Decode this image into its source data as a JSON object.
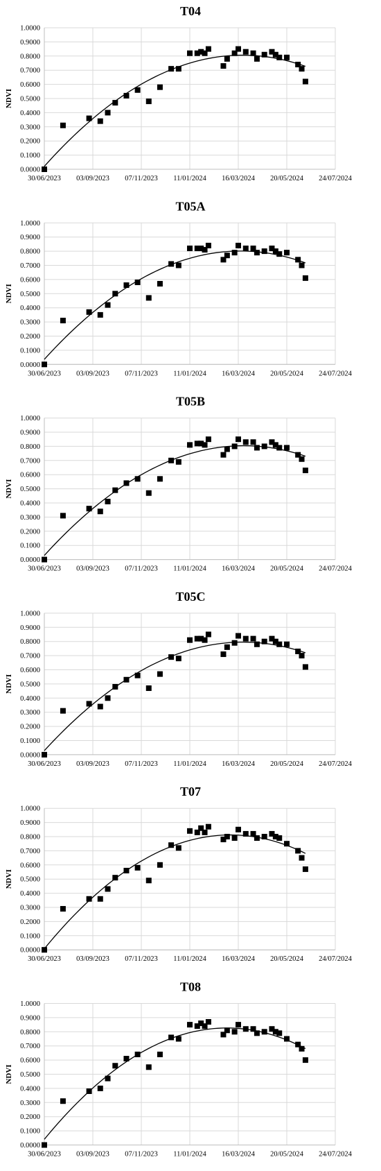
{
  "chart_data": [
    {
      "type": "scatter",
      "title": "T04",
      "ylabel": "NDVI",
      "xlabel": "",
      "x_ticks": [
        "30/06/2023",
        "03/09/2023",
        "07/11/2023",
        "11/01/2024",
        "16/03/2024",
        "20/05/2024",
        "24/07/2024"
      ],
      "y_ticks": [
        "0.0000",
        "0.1000",
        "0.2000",
        "0.3000",
        "0.4000",
        "0.5000",
        "0.6000",
        "0.7000",
        "0.8000",
        "0.9000",
        "1.0000"
      ],
      "xlim": [
        "2023-06-30",
        "2024-07-24"
      ],
      "ylim": [
        0,
        1
      ],
      "grid": true,
      "legend": false,
      "trendline": "polynomial",
      "series": [
        {
          "x": [
            "2023-06-30",
            "2023-07-25",
            "2023-08-29",
            "2023-09-13",
            "2023-09-23",
            "2023-10-03",
            "2023-10-18",
            "2023-11-02",
            "2023-11-17",
            "2023-12-02",
            "2023-12-17",
            "2023-12-27",
            "2024-01-11",
            "2024-01-21",
            "2024-01-26",
            "2024-01-31",
            "2024-02-05",
            "2024-02-25",
            "2024-03-01",
            "2024-03-11",
            "2024-03-16",
            "2024-03-26",
            "2024-04-05",
            "2024-04-10",
            "2024-04-20",
            "2024-04-30",
            "2024-05-05",
            "2024-05-10",
            "2024-05-20",
            "2024-06-04",
            "2024-06-09",
            "2024-06-14"
          ],
          "y": [
            0.0,
            0.31,
            0.36,
            0.34,
            0.4,
            0.47,
            0.52,
            0.56,
            0.48,
            0.58,
            0.71,
            0.71,
            0.82,
            0.82,
            0.83,
            0.82,
            0.85,
            0.73,
            0.78,
            0.82,
            0.85,
            0.83,
            0.82,
            0.78,
            0.81,
            0.83,
            0.81,
            0.79,
            0.79,
            0.74,
            0.71,
            0.62
          ]
        }
      ]
    },
    {
      "type": "scatter",
      "title": "T05A",
      "ylabel": "NDVI",
      "xlabel": "",
      "x_ticks": [
        "30/06/2023",
        "03/09/2023",
        "07/11/2023",
        "11/01/2024",
        "16/03/2024",
        "20/05/2024",
        "24/07/2024"
      ],
      "y_ticks": [
        "0.0000",
        "0.1000",
        "0.2000",
        "0.3000",
        "0.4000",
        "0.5000",
        "0.6000",
        "0.7000",
        "0.8000",
        "0.9000",
        "1.0000"
      ],
      "xlim": [
        "2023-06-30",
        "2024-07-24"
      ],
      "ylim": [
        0,
        1
      ],
      "grid": true,
      "legend": false,
      "trendline": "polynomial",
      "series": [
        {
          "x": [
            "2023-06-30",
            "2023-07-25",
            "2023-08-29",
            "2023-09-13",
            "2023-09-23",
            "2023-10-03",
            "2023-10-18",
            "2023-11-02",
            "2023-11-17",
            "2023-12-02",
            "2023-12-17",
            "2023-12-27",
            "2024-01-11",
            "2024-01-21",
            "2024-01-26",
            "2024-01-31",
            "2024-02-05",
            "2024-02-25",
            "2024-03-01",
            "2024-03-11",
            "2024-03-16",
            "2024-03-26",
            "2024-04-05",
            "2024-04-10",
            "2024-04-20",
            "2024-04-30",
            "2024-05-05",
            "2024-05-10",
            "2024-05-20",
            "2024-06-04",
            "2024-06-09",
            "2024-06-14"
          ],
          "y": [
            0.0,
            0.31,
            0.37,
            0.35,
            0.42,
            0.5,
            0.56,
            0.58,
            0.47,
            0.57,
            0.71,
            0.7,
            0.82,
            0.82,
            0.82,
            0.81,
            0.84,
            0.74,
            0.77,
            0.79,
            0.84,
            0.82,
            0.82,
            0.79,
            0.8,
            0.82,
            0.8,
            0.78,
            0.79,
            0.74,
            0.7,
            0.61
          ]
        }
      ]
    },
    {
      "type": "scatter",
      "title": "T05B",
      "ylabel": "NDVI",
      "xlabel": "",
      "x_ticks": [
        "30/06/2023",
        "03/09/2023",
        "07/11/2023",
        "11/01/2024",
        "16/03/2024",
        "20/05/2024",
        "24/07/2024"
      ],
      "y_ticks": [
        "0.0000",
        "0.1000",
        "0.2000",
        "0.3000",
        "0.4000",
        "0.5000",
        "0.6000",
        "0.7000",
        "0.8000",
        "0.9000",
        "1.0000"
      ],
      "xlim": [
        "2023-06-30",
        "2024-07-24"
      ],
      "ylim": [
        0,
        1
      ],
      "grid": true,
      "legend": false,
      "trendline": "polynomial",
      "series": [
        {
          "x": [
            "2023-06-30",
            "2023-07-25",
            "2023-08-29",
            "2023-09-13",
            "2023-09-23",
            "2023-10-03",
            "2023-10-18",
            "2023-11-02",
            "2023-11-17",
            "2023-12-02",
            "2023-12-17",
            "2023-12-27",
            "2024-01-11",
            "2024-01-21",
            "2024-01-26",
            "2024-01-31",
            "2024-02-05",
            "2024-02-25",
            "2024-03-01",
            "2024-03-11",
            "2024-03-16",
            "2024-03-26",
            "2024-04-05",
            "2024-04-10",
            "2024-04-20",
            "2024-04-30",
            "2024-05-05",
            "2024-05-10",
            "2024-05-20",
            "2024-06-04",
            "2024-06-09",
            "2024-06-14"
          ],
          "y": [
            0.0,
            0.31,
            0.36,
            0.34,
            0.41,
            0.49,
            0.54,
            0.57,
            0.47,
            0.57,
            0.7,
            0.69,
            0.81,
            0.82,
            0.82,
            0.81,
            0.85,
            0.74,
            0.78,
            0.8,
            0.85,
            0.83,
            0.83,
            0.79,
            0.8,
            0.83,
            0.81,
            0.79,
            0.79,
            0.74,
            0.71,
            0.63
          ]
        }
      ]
    },
    {
      "type": "scatter",
      "title": "T05C",
      "ylabel": "NDVI",
      "xlabel": "",
      "x_ticks": [
        "30/06/2023",
        "03/09/2023",
        "07/11/2023",
        "11/01/2024",
        "16/03/2024",
        "20/05/2024",
        "24/07/2024"
      ],
      "y_ticks": [
        "0.0000",
        "0.1000",
        "0.2000",
        "0.3000",
        "0.4000",
        "0.5000",
        "0.6000",
        "0.7000",
        "0.8000",
        "0.9000",
        "1.0000"
      ],
      "xlim": [
        "2023-06-30",
        "2024-07-24"
      ],
      "ylim": [
        0,
        1
      ],
      "grid": true,
      "legend": false,
      "trendline": "polynomial",
      "series": [
        {
          "x": [
            "2023-06-30",
            "2023-07-25",
            "2023-08-29",
            "2023-09-13",
            "2023-09-23",
            "2023-10-03",
            "2023-10-18",
            "2023-11-02",
            "2023-11-17",
            "2023-12-02",
            "2023-12-17",
            "2023-12-27",
            "2024-01-11",
            "2024-01-21",
            "2024-01-26",
            "2024-01-31",
            "2024-02-05",
            "2024-02-25",
            "2024-03-01",
            "2024-03-11",
            "2024-03-16",
            "2024-03-26",
            "2024-04-05",
            "2024-04-10",
            "2024-04-20",
            "2024-04-30",
            "2024-05-05",
            "2024-05-10",
            "2024-05-20",
            "2024-06-04",
            "2024-06-09",
            "2024-06-14"
          ],
          "y": [
            0.0,
            0.31,
            0.36,
            0.34,
            0.4,
            0.48,
            0.53,
            0.56,
            0.47,
            0.57,
            0.69,
            0.68,
            0.81,
            0.82,
            0.82,
            0.81,
            0.85,
            0.71,
            0.76,
            0.79,
            0.84,
            0.82,
            0.82,
            0.78,
            0.8,
            0.82,
            0.8,
            0.78,
            0.78,
            0.73,
            0.7,
            0.62
          ]
        }
      ]
    },
    {
      "type": "scatter",
      "title": "T07",
      "ylabel": "NDVI",
      "xlabel": "",
      "x_ticks": [
        "30/06/2023",
        "03/09/2023",
        "07/11/2023",
        "11/01/2024",
        "16/03/2024",
        "20/05/2024",
        "24/07/2024"
      ],
      "y_ticks": [
        "0.0000",
        "0.1000",
        "0.2000",
        "0.3000",
        "0.4000",
        "0.5000",
        "0.6000",
        "0.7000",
        "0.8000",
        "0.9000",
        "1.0000"
      ],
      "xlim": [
        "2023-06-30",
        "2024-07-24"
      ],
      "ylim": [
        0,
        1
      ],
      "grid": true,
      "legend": false,
      "trendline": "polynomial",
      "series": [
        {
          "x": [
            "2023-06-30",
            "2023-07-25",
            "2023-08-29",
            "2023-09-13",
            "2023-09-23",
            "2023-10-03",
            "2023-10-18",
            "2023-11-02",
            "2023-11-17",
            "2023-12-02",
            "2023-12-17",
            "2023-12-27",
            "2024-01-11",
            "2024-01-21",
            "2024-01-26",
            "2024-01-31",
            "2024-02-05",
            "2024-02-25",
            "2024-03-01",
            "2024-03-11",
            "2024-03-16",
            "2024-03-26",
            "2024-04-05",
            "2024-04-10",
            "2024-04-20",
            "2024-04-30",
            "2024-05-05",
            "2024-05-10",
            "2024-05-20",
            "2024-06-04",
            "2024-06-09",
            "2024-06-14"
          ],
          "y": [
            0.0,
            0.29,
            0.36,
            0.36,
            0.43,
            0.51,
            0.56,
            0.58,
            0.49,
            0.6,
            0.74,
            0.72,
            0.84,
            0.83,
            0.86,
            0.83,
            0.87,
            0.78,
            0.8,
            0.79,
            0.85,
            0.82,
            0.82,
            0.79,
            0.8,
            0.82,
            0.8,
            0.79,
            0.75,
            0.7,
            0.65,
            0.57
          ]
        }
      ]
    },
    {
      "type": "scatter",
      "title": "T08",
      "ylabel": "NDVI",
      "xlabel": "",
      "x_ticks": [
        "30/06/2023",
        "03/09/2023",
        "07/11/2023",
        "11/01/2024",
        "16/03/2024",
        "20/05/2024",
        "24/07/2024"
      ],
      "y_ticks": [
        "0.0000",
        "0.1000",
        "0.2000",
        "0.3000",
        "0.4000",
        "0.5000",
        "0.6000",
        "0.7000",
        "0.8000",
        "0.9000",
        "1.0000"
      ],
      "xlim": [
        "2023-06-30",
        "2024-07-24"
      ],
      "ylim": [
        0,
        1
      ],
      "grid": true,
      "legend": false,
      "trendline": "polynomial",
      "series": [
        {
          "x": [
            "2023-06-30",
            "2023-07-25",
            "2023-08-29",
            "2023-09-13",
            "2023-09-23",
            "2023-10-03",
            "2023-10-18",
            "2023-11-02",
            "2023-11-17",
            "2023-12-02",
            "2023-12-17",
            "2023-12-27",
            "2024-01-11",
            "2024-01-21",
            "2024-01-26",
            "2024-01-31",
            "2024-02-05",
            "2024-02-25",
            "2024-03-01",
            "2024-03-11",
            "2024-03-16",
            "2024-03-26",
            "2024-04-05",
            "2024-04-10",
            "2024-04-20",
            "2024-04-30",
            "2024-05-05",
            "2024-05-10",
            "2024-05-20",
            "2024-06-04",
            "2024-06-09",
            "2024-06-14"
          ],
          "y": [
            0.0,
            0.31,
            0.38,
            0.4,
            0.47,
            0.56,
            0.61,
            0.64,
            0.55,
            0.64,
            0.76,
            0.75,
            0.85,
            0.84,
            0.86,
            0.84,
            0.87,
            0.78,
            0.81,
            0.8,
            0.85,
            0.82,
            0.82,
            0.79,
            0.8,
            0.82,
            0.8,
            0.79,
            0.75,
            0.71,
            0.68,
            0.6
          ]
        }
      ]
    }
  ]
}
